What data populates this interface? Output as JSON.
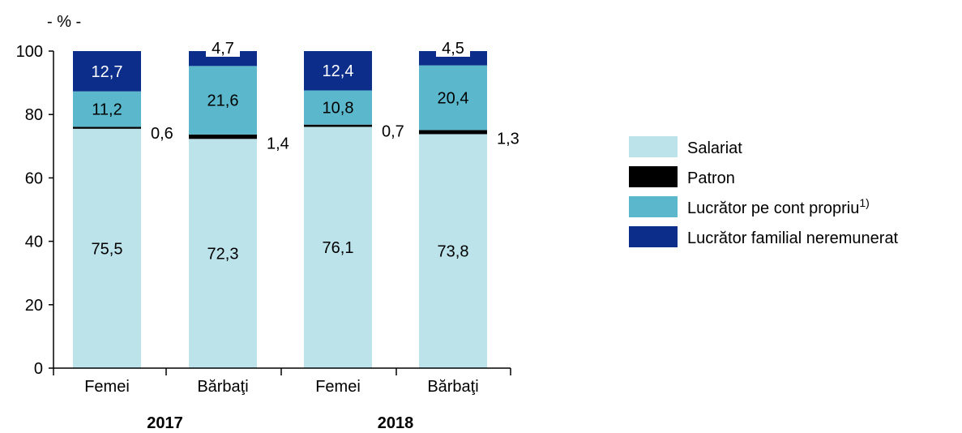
{
  "chart_data": {
    "type": "bar",
    "stacked": true,
    "unit_label": "- % -",
    "ylim": [
      0,
      100
    ],
    "yticks": [
      0,
      20,
      40,
      60,
      80,
      100
    ],
    "groups": [
      {
        "label": "2017",
        "categories": [
          "Femei",
          "Bărbaţi"
        ]
      },
      {
        "label": "2018",
        "categories": [
          "Femei",
          "Bărbaţi"
        ]
      }
    ],
    "categories": [
      "Femei",
      "Bărbaţi",
      "Femei",
      "Bărbaţi"
    ],
    "series": [
      {
        "name": "Salariat",
        "color": "#bde3ea",
        "values": [
          75.5,
          72.3,
          76.1,
          73.8
        ],
        "labels": [
          "75,5",
          "72,3",
          "76,1",
          "73,8"
        ]
      },
      {
        "name": "Patron",
        "color": "#000000",
        "values": [
          0.6,
          1.4,
          0.7,
          1.3
        ],
        "labels": [
          "0,6",
          "1,4",
          "0,7",
          "1,3"
        ]
      },
      {
        "name": "Lucrător pe cont propriu",
        "superscript": "1)",
        "color": "#5bb8cc",
        "values": [
          11.2,
          21.6,
          10.8,
          20.4
        ],
        "labels": [
          "11,2",
          "21,6",
          "10,8",
          "20,4"
        ]
      },
      {
        "name": "Lucrător familial neremunerat",
        "color": "#0c2e8a",
        "values": [
          12.7,
          4.7,
          12.4,
          4.5
        ],
        "labels": [
          "12,7",
          "4,7",
          "12,4",
          "4,5"
        ]
      }
    ],
    "legend_position": "right",
    "grid": false
  }
}
